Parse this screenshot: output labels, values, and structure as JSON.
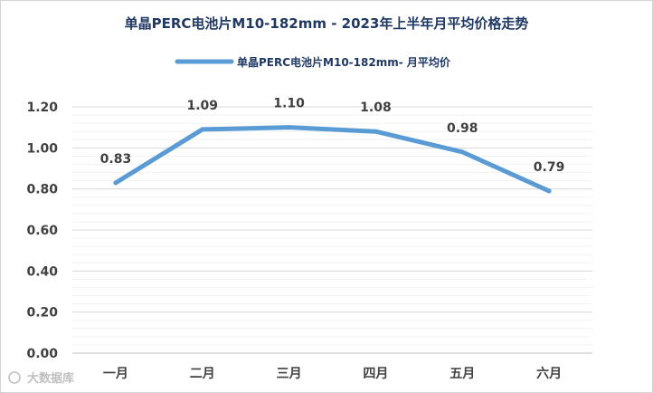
{
  "chart_data": {
    "type": "line",
    "title": "单晶PERC电池片M10-182mm - 2023年上半年月平均价格走势",
    "categories": [
      "一月",
      "二月",
      "三月",
      "四月",
      "五月",
      "六月"
    ],
    "series": [
      {
        "name": "单晶PERC电池片M10-182mm- 月平均价",
        "values": [
          0.83,
          1.09,
          1.1,
          1.08,
          0.98,
          0.79
        ],
        "data_labels": [
          "0.83",
          "1.09",
          "1.10",
          "1.08",
          "0.98",
          "0.79"
        ],
        "color": "#5b9bd5"
      }
    ],
    "y_ticks": [
      "0.00",
      "0.20",
      "0.40",
      "0.60",
      "0.80",
      "1.00",
      "1.20"
    ],
    "ylim": [
      0,
      1.2
    ],
    "xlabel": "",
    "ylabel": "",
    "grid": true,
    "legend_position": "top"
  },
  "watermark": "大数据库"
}
